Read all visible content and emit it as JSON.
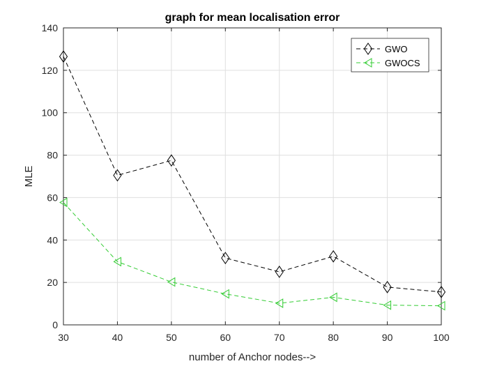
{
  "chart_data": {
    "type": "line",
    "title": "graph for mean localisation error",
    "xlabel": "number of Anchor nodes-->",
    "ylabel": "MLE",
    "x": [
      30,
      40,
      50,
      60,
      70,
      80,
      90,
      100
    ],
    "xlim": [
      30,
      100
    ],
    "ylim": [
      0,
      140
    ],
    "xticks": [
      30,
      40,
      50,
      60,
      70,
      80,
      90,
      100
    ],
    "yticks": [
      0,
      20,
      40,
      60,
      80,
      100,
      120,
      140
    ],
    "grid": true,
    "legend_position": "top-right",
    "series": [
      {
        "name": "GWO",
        "values": [
          126.5,
          70.5,
          77.5,
          31.5,
          25,
          32.3,
          17.8,
          15.5
        ],
        "color": "#000000",
        "marker": "diamond",
        "line_style": "dashed"
      },
      {
        "name": "GWOCS",
        "values": [
          57.7,
          29.8,
          20.2,
          14.6,
          10.2,
          13,
          9.3,
          9
        ],
        "color": "#33cc33",
        "marker": "triangle-left",
        "line_style": "dashed"
      }
    ]
  }
}
